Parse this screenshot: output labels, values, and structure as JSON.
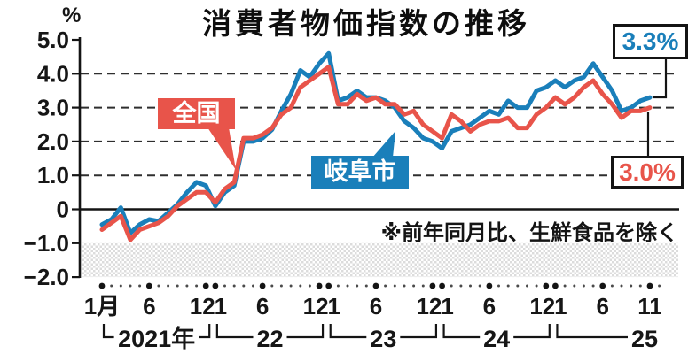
{
  "title": "消費者物価指数の推移",
  "note": "※前年同月比、生鮮食品を除く",
  "unit_label": "%",
  "colors": {
    "national": "#e8544a",
    "gifu": "#1a7fba",
    "ink": "#141414",
    "band_gray": "#dcdcdc"
  },
  "annotations": {
    "national_label": "全国",
    "gifu_label": "岐阜市",
    "gifu_end_value": "3.3%",
    "national_end_value": "3.0%"
  },
  "chart_data": {
    "type": "line",
    "ylim": [
      -2.0,
      5.0
    ],
    "grid": "horizontal dashed at 1.0-4.0, solid line at 0",
    "legend_position": "inline callout labels",
    "shaded_band": {
      "from": -2.0,
      "to": -1.0
    },
    "yticks": [
      {
        "v": 5,
        "label": "5.0",
        "grid": "none"
      },
      {
        "v": 4,
        "label": "4.0",
        "grid": "dashed"
      },
      {
        "v": 3,
        "label": "3.0",
        "grid": "dashed"
      },
      {
        "v": 2,
        "label": "2.0",
        "grid": "dashed"
      },
      {
        "v": 1,
        "label": "1.0",
        "grid": "dashed"
      },
      {
        "v": 0,
        "label": "0",
        "grid": "solid"
      },
      {
        "v": -1,
        "label": "−1.0",
        "grid": "none"
      },
      {
        "v": -2,
        "label": "−2.0",
        "grid": "none"
      }
    ],
    "x_start_month": "2021-01",
    "x_end_month": "2025-11",
    "x_count": 59,
    "month_tick_labels": [
      {
        "i": 0,
        "label": "1月",
        "dx": 0
      },
      {
        "i": 5,
        "label": "6",
        "dx": 0
      },
      {
        "i": 11,
        "label": "12",
        "dx": -4
      },
      {
        "i": 12,
        "label": "1",
        "dx": 6
      },
      {
        "i": 17,
        "label": "6",
        "dx": 0
      },
      {
        "i": 23,
        "label": "12",
        "dx": -4
      },
      {
        "i": 24,
        "label": "1",
        "dx": 6
      },
      {
        "i": 29,
        "label": "6",
        "dx": 0
      },
      {
        "i": 35,
        "label": "12",
        "dx": -4
      },
      {
        "i": 36,
        "label": "1",
        "dx": 6
      },
      {
        "i": 41,
        "label": "6",
        "dx": 0
      },
      {
        "i": 47,
        "label": "12",
        "dx": -4
      },
      {
        "i": 48,
        "label": "1",
        "dx": 6
      },
      {
        "i": 53,
        "label": "6",
        "dx": 0
      },
      {
        "i": 58,
        "label": "11",
        "dx": 0
      }
    ],
    "major_tick_indices": [
      0,
      5,
      11,
      12,
      17,
      23,
      24,
      29,
      35,
      36,
      41,
      47,
      48,
      53,
      58
    ],
    "year_groups": [
      {
        "label": "2021年",
        "from": 0,
        "to": 11
      },
      {
        "label": "22",
        "from": 12,
        "to": 23
      },
      {
        "label": "23",
        "from": 24,
        "to": 35
      },
      {
        "label": "24",
        "from": 36,
        "to": 47
      },
      {
        "label": "25",
        "from": 48,
        "to": 58
      }
    ],
    "series": [
      {
        "key": "national",
        "name": "全国",
        "color": "#e8544a",
        "end_value": 3.0,
        "values": [
          -0.6,
          -0.4,
          -0.2,
          -0.9,
          -0.6,
          -0.5,
          -0.4,
          -0.2,
          0.1,
          0.3,
          0.5,
          0.5,
          0.2,
          0.6,
          0.8,
          2.1,
          2.1,
          2.2,
          2.4,
          2.8,
          3.0,
          3.6,
          3.8,
          4.0,
          4.2,
          3.1,
          3.1,
          3.4,
          3.2,
          3.3,
          3.1,
          3.1,
          2.8,
          2.9,
          2.5,
          2.3,
          2.1,
          2.8,
          2.6,
          2.3,
          2.5,
          2.6,
          2.6,
          2.7,
          2.4,
          2.4,
          2.8,
          3.0,
          3.3,
          3.1,
          3.3,
          3.6,
          3.8,
          3.4,
          3.1,
          2.7,
          2.9,
          2.9,
          3.0
        ]
      },
      {
        "key": "gifu",
        "name": "岐阜市",
        "color": "#1a7fba",
        "end_value": 3.3,
        "values": [
          -0.45,
          -0.3,
          0.05,
          -0.7,
          -0.45,
          -0.3,
          -0.35,
          -0.1,
          0.15,
          0.5,
          0.8,
          0.7,
          0.1,
          0.5,
          0.7,
          2.0,
          2.0,
          2.1,
          2.35,
          2.9,
          3.4,
          4.1,
          3.9,
          4.3,
          4.6,
          3.2,
          3.3,
          3.5,
          3.3,
          3.3,
          3.2,
          3.0,
          2.6,
          2.4,
          2.1,
          2.0,
          1.8,
          2.3,
          2.4,
          2.5,
          2.7,
          2.9,
          2.8,
          3.2,
          3.0,
          3.0,
          3.5,
          3.6,
          3.8,
          3.6,
          3.8,
          3.9,
          4.3,
          3.9,
          3.5,
          2.9,
          3.0,
          3.2,
          3.3
        ]
      }
    ]
  }
}
